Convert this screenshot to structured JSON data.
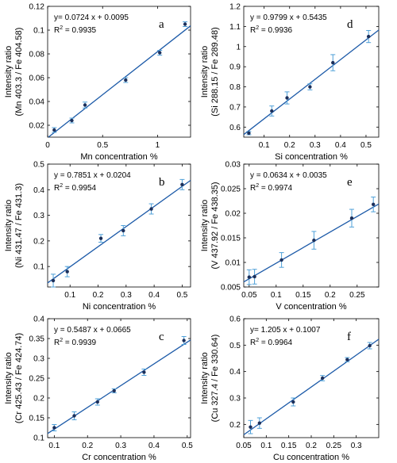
{
  "chart_data": [
    {
      "type": "scatter",
      "panel_letter": "a",
      "xlabel": "Mn concentration %",
      "ylabel": [
        "Intensity ratio",
        "(Mn 403.3 / Fe  404.58)"
      ],
      "equation": "y= 0.0724 x + 0.0095",
      "r2_value": "0.9935",
      "xlim": [
        0,
        1.3
      ],
      "ylim": [
        0.01,
        0.12
      ],
      "xticks": [
        "0",
        "0.5",
        "1"
      ],
      "xtick_values": [
        0,
        0.5,
        1
      ],
      "yticks": [
        "0.02",
        "0.04",
        "0.06",
        "0.08",
        "0.1",
        "0.12"
      ],
      "ytick_values": [
        0.02,
        0.04,
        0.06,
        0.08,
        0.1,
        0.12
      ],
      "fit": {
        "slope": 0.0724,
        "intercept": 0.0095
      },
      "points": [
        {
          "x": 0.06,
          "y": 0.016,
          "err": 0.002
        },
        {
          "x": 0.22,
          "y": 0.024,
          "err": 0.002
        },
        {
          "x": 0.34,
          "y": 0.037,
          "err": 0.0025
        },
        {
          "x": 0.71,
          "y": 0.058,
          "err": 0.002
        },
        {
          "x": 1.02,
          "y": 0.081,
          "err": 0.002
        },
        {
          "x": 1.25,
          "y": 0.105,
          "err": 0.002
        }
      ]
    },
    {
      "type": "scatter",
      "panel_letter": "d",
      "xlabel": "Si concentration %",
      "ylabel": [
        "Intensity ratio",
        "(Si 288.15 / Fe  289.48)"
      ],
      "equation": "y = 0.9799 x + 0.5435",
      "r2_value": "0.9936",
      "xlim": [
        0.02,
        0.55
      ],
      "ylim": [
        0.55,
        1.2
      ],
      "xticks": [
        "0.1",
        "0.2",
        "0.3",
        "0.4",
        "0.5"
      ],
      "xtick_values": [
        0.1,
        0.2,
        0.3,
        0.4,
        0.5
      ],
      "yticks": [
        "0.6",
        "0.7",
        "0.8",
        "0.9",
        "1",
        "1.1",
        "1.2"
      ],
      "ytick_values": [
        0.6,
        0.7,
        0.8,
        0.9,
        1.0,
        1.1,
        1.2
      ],
      "fit": {
        "slope": 0.9799,
        "intercept": 0.5435
      },
      "points": [
        {
          "x": 0.04,
          "y": 0.57,
          "err": 0.008
        },
        {
          "x": 0.13,
          "y": 0.68,
          "err": 0.025
        },
        {
          "x": 0.19,
          "y": 0.745,
          "err": 0.03
        },
        {
          "x": 0.28,
          "y": 0.8,
          "err": 0.015
        },
        {
          "x": 0.37,
          "y": 0.92,
          "err": 0.04
        },
        {
          "x": 0.51,
          "y": 1.05,
          "err": 0.03
        }
      ]
    },
    {
      "type": "scatter",
      "panel_letter": "b",
      "xlabel": "Ni concentration %",
      "ylabel": [
        "Intensity ratio",
        "(Ni 431.47 / Fe  431.3)"
      ],
      "equation": "y = 0.7851 x + 0.0204",
      "r2_value": "0.9954",
      "xlim": [
        0.02,
        0.53
      ],
      "ylim": [
        0.02,
        0.5
      ],
      "xticks": [
        "0.1",
        "0.2",
        "0.3",
        "0.4",
        "0.5"
      ],
      "xtick_values": [
        0.1,
        0.2,
        0.3,
        0.4,
        0.5
      ],
      "yticks": [
        "0.1",
        "0.2",
        "0.3",
        "0.4",
        "0.5"
      ],
      "ytick_values": [
        0.1,
        0.2,
        0.3,
        0.4,
        0.5
      ],
      "fit": {
        "slope": 0.7851,
        "intercept": 0.0204
      },
      "points": [
        {
          "x": 0.04,
          "y": 0.045,
          "err": 0.025
        },
        {
          "x": 0.09,
          "y": 0.08,
          "err": 0.02
        },
        {
          "x": 0.21,
          "y": 0.21,
          "err": 0.015
        },
        {
          "x": 0.29,
          "y": 0.24,
          "err": 0.02
        },
        {
          "x": 0.39,
          "y": 0.325,
          "err": 0.02
        },
        {
          "x": 0.5,
          "y": 0.42,
          "err": 0.02
        }
      ]
    },
    {
      "type": "scatter",
      "panel_letter": "e",
      "xlabel": "V concentration %",
      "ylabel": [
        "Intensity ratio",
        "(V 437.92 / Fe  438.35)"
      ],
      "equation": "y = 0.0634 x + 0.0035",
      "r2_value": "0.9974",
      "xlim": [
        0.04,
        0.29
      ],
      "ylim": [
        0.005,
        0.03
      ],
      "xticks": [
        "0.05",
        "0.1",
        "0.15",
        "0.2",
        "0.25"
      ],
      "xtick_values": [
        0.05,
        0.1,
        0.15,
        0.2,
        0.25
      ],
      "yticks": [
        "0.005",
        "0.01",
        "0.015",
        "0.02",
        "0.025",
        "0.03"
      ],
      "ytick_values": [
        0.005,
        0.01,
        0.015,
        0.02,
        0.025,
        0.03
      ],
      "fit": {
        "slope": 0.0634,
        "intercept": 0.0035
      },
      "points": [
        {
          "x": 0.05,
          "y": 0.007,
          "err": 0.0015
        },
        {
          "x": 0.06,
          "y": 0.0071,
          "err": 0.0015
        },
        {
          "x": 0.11,
          "y": 0.0105,
          "err": 0.0015
        },
        {
          "x": 0.17,
          "y": 0.0145,
          "err": 0.0018
        },
        {
          "x": 0.24,
          "y": 0.019,
          "err": 0.0018
        },
        {
          "x": 0.28,
          "y": 0.0218,
          "err": 0.0015
        }
      ]
    },
    {
      "type": "scatter",
      "panel_letter": "c",
      "xlabel": "Cr concentration %",
      "ylabel": [
        "Intensity ratio",
        "(Cr 425.43 / Fe  424.74)"
      ],
      "equation": "y = 0.5487 x + 0.0665",
      "r2_value": "0.9939",
      "xlim": [
        0.08,
        0.51
      ],
      "ylim": [
        0.1,
        0.4
      ],
      "xticks": [
        "0.1",
        "0.2",
        "0.3",
        "0.4",
        "0.5"
      ],
      "xtick_values": [
        0.1,
        0.2,
        0.3,
        0.4,
        0.5
      ],
      "yticks": [
        "0.1",
        "0.15",
        "0.2",
        "0.25",
        "0.3",
        "0.35",
        "0.4"
      ],
      "ytick_values": [
        0.1,
        0.15,
        0.2,
        0.25,
        0.3,
        0.35,
        0.4
      ],
      "fit": {
        "slope": 0.5487,
        "intercept": 0.0665
      },
      "points": [
        {
          "x": 0.1,
          "y": 0.125,
          "err": 0.008
        },
        {
          "x": 0.16,
          "y": 0.155,
          "err": 0.01
        },
        {
          "x": 0.23,
          "y": 0.19,
          "err": 0.008
        },
        {
          "x": 0.28,
          "y": 0.218,
          "err": 0.005
        },
        {
          "x": 0.37,
          "y": 0.265,
          "err": 0.008
        },
        {
          "x": 0.49,
          "y": 0.345,
          "err": 0.01
        }
      ]
    },
    {
      "type": "scatter",
      "panel_letter": "f",
      "xlabel": "Cu concentration %",
      "ylabel": [
        "Intensity ratio",
        "(Cu 327.4 / Fe  330.64)"
      ],
      "equation": "y= 1.205 x + 0.1007",
      "r2_value": "0.9964",
      "xlim": [
        0.05,
        0.35
      ],
      "ylim": [
        0.15,
        0.6
      ],
      "xticks": [
        "0.05",
        "0.1",
        "0.15",
        "0.2",
        "0.25",
        "0.3"
      ],
      "xtick_values": [
        0.05,
        0.1,
        0.15,
        0.2,
        0.25,
        0.3
      ],
      "yticks": [
        "0.2",
        "0.3",
        "0.4",
        "0.5",
        "0.6"
      ],
      "ytick_values": [
        0.2,
        0.3,
        0.4,
        0.5,
        0.6
      ],
      "fit": {
        "slope": 1.205,
        "intercept": 0.1007
      },
      "points": [
        {
          "x": 0.065,
          "y": 0.19,
          "err": 0.025
        },
        {
          "x": 0.085,
          "y": 0.205,
          "err": 0.02
        },
        {
          "x": 0.16,
          "y": 0.285,
          "err": 0.015
        },
        {
          "x": 0.225,
          "y": 0.375,
          "err": 0.01
        },
        {
          "x": 0.28,
          "y": 0.445,
          "err": 0.008
        },
        {
          "x": 0.33,
          "y": 0.498,
          "err": 0.012
        }
      ]
    }
  ],
  "colors": {
    "fit_line": "#1c5aa8",
    "error_bar": "#4fa0d8",
    "marker": "#1c2f5a",
    "axis": "#000000"
  }
}
